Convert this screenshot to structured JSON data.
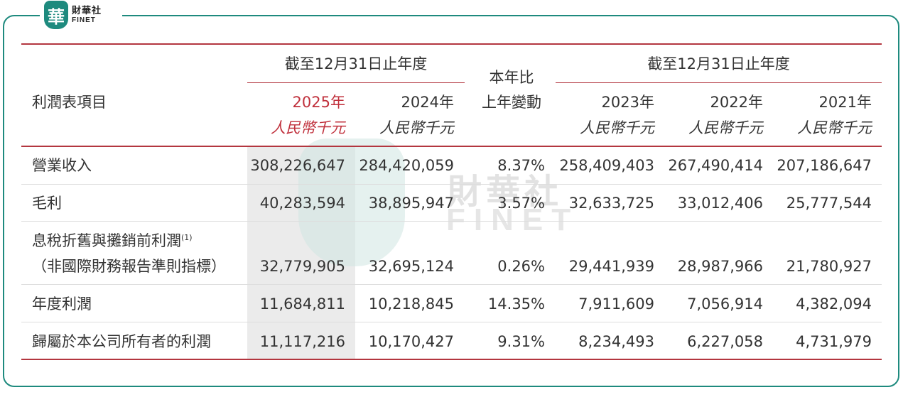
{
  "logo": {
    "mark": "華",
    "cn": "財華社",
    "en": "FINET"
  },
  "watermark": {
    "cn": "財華社",
    "en": "FINET"
  },
  "header": {
    "group1": "截至12月31日止年度",
    "group2": "截至12月31日止年度",
    "item_label": "利潤表項目",
    "yoy_line1": "本年比",
    "yoy_line2": "上年變動",
    "unit": "人民幣千元",
    "years": [
      "2025年",
      "2024年",
      "2023年",
      "2022年",
      "2021年"
    ]
  },
  "rows": [
    {
      "label": "營業收入",
      "values": [
        "308,226,647",
        "284,420,059",
        "8.37%",
        "258,409,403",
        "267,490,414",
        "207,186,647"
      ]
    },
    {
      "label": "毛利",
      "values": [
        "40,283,594",
        "38,895,947",
        "3.57%",
        "32,633,725",
        "33,012,406",
        "25,777,544"
      ]
    },
    {
      "label": "息稅折舊與攤銷前利潤",
      "footnote": "(1)",
      "label2": "（非國際財務報告準則指標）",
      "values": [
        "32,779,905",
        "32,695,124",
        "0.26%",
        "29,441,939",
        "28,987,966",
        "21,780,927"
      ]
    },
    {
      "label": "年度利潤",
      "values": [
        "11,684,811",
        "10,218,845",
        "14.35%",
        "7,911,609",
        "7,056,914",
        "4,382,094"
      ]
    },
    {
      "label": "歸屬於本公司所有者的利潤",
      "values": [
        "11,117,216",
        "10,170,427",
        "9.31%",
        "8,234,493",
        "6,227,058",
        "4,731,979"
      ]
    }
  ],
  "colors": {
    "accent_red": "#c0303c",
    "frame_teal": "#1e8a7e",
    "highlight_gray": "#ebebeb"
  }
}
